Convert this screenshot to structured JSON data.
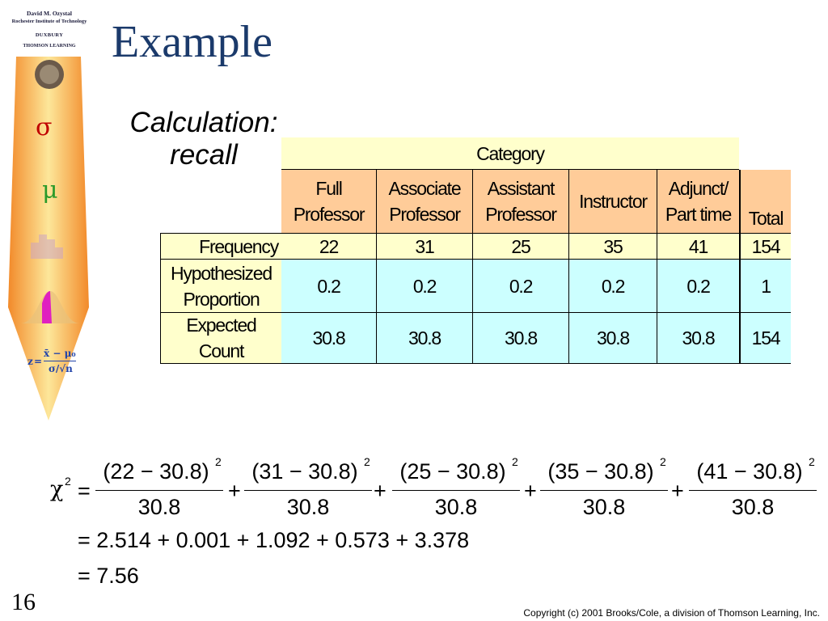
{
  "sidebar": {
    "author": "David M. Ozystal",
    "institution": "Rochester Institute of Technology",
    "publisher_line1": "DUXBURY",
    "publisher_line2": "THOMSON LEARNING",
    "symbols": [
      "σ",
      "μ"
    ],
    "z_formula": {
      "lhs": "z",
      "numerator": "x̄ − μ₀",
      "denominator": "σ/√n"
    }
  },
  "slide": {
    "title": "Example",
    "subtitle_line1": "Calculation:",
    "subtitle_line2": "recall",
    "number": "16",
    "copyright": "Copyright (c) 2001 Brooks/Cole, a division of Thomson Learning, Inc."
  },
  "table": {
    "category_header": "Category",
    "columns": [
      {
        "line1": "Full",
        "line2": "Professor"
      },
      {
        "line1": "Associate",
        "line2": "Professor"
      },
      {
        "line1": "Assistant",
        "line2": "Professor"
      },
      {
        "line1": "Instructor",
        "line2": ""
      },
      {
        "line1": "Adjunct/",
        "line2": "Part time"
      }
    ],
    "total_header": "Total",
    "rows": [
      {
        "label1": "Frequency",
        "label2": "",
        "values": [
          "22",
          "31",
          "25",
          "35",
          "41"
        ],
        "total": "154"
      },
      {
        "label1": "Hypothesized",
        "label2": "Proportion",
        "values": [
          "0.2",
          "0.2",
          "0.2",
          "0.2",
          "0.2"
        ],
        "total": "1"
      },
      {
        "label1": "Expected",
        "label2": "Count",
        "values": [
          "30.8",
          "30.8",
          "30.8",
          "30.8",
          "30.8"
        ],
        "total": "154"
      }
    ]
  },
  "formula": {
    "lhs": "χ",
    "lhs_exp": "2",
    "equals": "=",
    "plus": "+",
    "terms": [
      {
        "num": "(22 − 30.8)",
        "den": "30.8"
      },
      {
        "num": "(31 − 30.8)",
        "den": "30.8"
      },
      {
        "num": "(25 − 30.8)",
        "den": "30.8"
      },
      {
        "num": "(35 − 30.8)",
        "den": "30.8"
      },
      {
        "num": "(41 − 30.8)",
        "den": "30.8"
      }
    ],
    "exp": "2",
    "line2": "= 2.514 + 0.001 + 1.092 + 0.573 + 3.378",
    "line3": "= 7.56"
  }
}
